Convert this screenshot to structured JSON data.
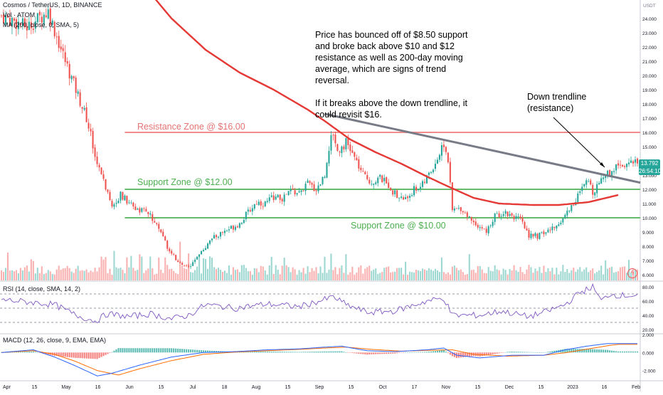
{
  "header": {
    "title": "Cosmos / TetherUS, 1D, BINANCE",
    "vol_legend": "Vol · ATOM",
    "ma_legend": "MA (200, close, 0, SMA, 5)",
    "rsi_legend": "RSI (14, close, SMA, 14, 2)",
    "macd_legend": "MACD (12, 26, close, 9, EMA, EMA)"
  },
  "annotations": {
    "commentary_p1": "Price has bounced off of $8.50 support and broke back above $10 and $12 resistance as well as 200-day moving average, which are signs of trend reversal.",
    "commentary_p2": "If it breaks above the down trendline, it could revisit $16.",
    "trendline_label_1": "Down trendline",
    "trendline_label_2": "(resistance)",
    "resistance_zone": "Resistance Zone @ $16.00",
    "support_zone_12": "Support Zone @ $12.00",
    "support_zone_10": "Support Zone @ $10.00"
  },
  "price_tag": {
    "line1": "13.792",
    "line2": "26:54:10"
  },
  "colors": {
    "up": "#26a69a",
    "down": "#ef5350",
    "ma": "#e53935",
    "trendline": "#787b86",
    "resistance": "#f28b8b",
    "support": "#66bb6a",
    "rsi": "#7e57c2",
    "macd": "#2962ff",
    "signal": "#ff6d00"
  },
  "chart_data": {
    "type": "candlestick",
    "xlabel_ticks": [
      "Apr",
      "15",
      "May",
      "16",
      "Jun",
      "15",
      "Jul",
      "18",
      "Aug",
      "15",
      "Sep",
      "15",
      "Oct",
      "17",
      "Nov",
      "15",
      "Dec",
      "15",
      "2023",
      "16",
      "Feb"
    ],
    "price_axis": {
      "unit": "USDT",
      "ticks": [
        "24.000",
        "23.000",
        "22.000",
        "21.000",
        "20.000",
        "19.000",
        "18.000",
        "17.000",
        "16.000",
        "15.000",
        "14.000",
        "13.000",
        "12.000",
        "11.000",
        "10.000",
        "9.000",
        "8.000",
        "7.000",
        "6.000"
      ],
      "range": [
        5.6,
        25.2
      ]
    },
    "price_path": [
      [
        0,
        24.2
      ],
      [
        12,
        23.4
      ],
      [
        22,
        24.5
      ],
      [
        30,
        21.0
      ],
      [
        40,
        17.0
      ],
      [
        44,
        14.5
      ],
      [
        48,
        12.5
      ],
      [
        52,
        11.0
      ],
      [
        56,
        11.6
      ],
      [
        62,
        10.8
      ],
      [
        68,
        10.4
      ],
      [
        72,
        9.8
      ],
      [
        76,
        8.6
      ],
      [
        80,
        7.4
      ],
      [
        84,
        6.8
      ],
      [
        88,
        6.5
      ],
      [
        92,
        7.4
      ],
      [
        96,
        7.9
      ],
      [
        100,
        8.6
      ],
      [
        104,
        9.0
      ],
      [
        108,
        9.3
      ],
      [
        112,
        9.6
      ],
      [
        116,
        10.4
      ],
      [
        120,
        11.1
      ],
      [
        124,
        11.0
      ],
      [
        128,
        11.5
      ],
      [
        132,
        11.3
      ],
      [
        136,
        11.9
      ],
      [
        140,
        11.7
      ],
      [
        144,
        12.4
      ],
      [
        148,
        12.0
      ],
      [
        152,
        13.0
      ],
      [
        154,
        15.0
      ],
      [
        156,
        16.0
      ],
      [
        158,
        14.7
      ],
      [
        162,
        15.3
      ],
      [
        166,
        14.2
      ],
      [
        170,
        13.0
      ],
      [
        174,
        12.5
      ],
      [
        178,
        12.8
      ],
      [
        182,
        12.3
      ],
      [
        186,
        11.5
      ],
      [
        190,
        11.3
      ],
      [
        194,
        12.0
      ],
      [
        198,
        12.3
      ],
      [
        202,
        13.3
      ],
      [
        206,
        14.5
      ],
      [
        208,
        15.2
      ],
      [
        210,
        14.0
      ],
      [
        212,
        10.5
      ],
      [
        216,
        10.7
      ],
      [
        220,
        10.0
      ],
      [
        224,
        9.5
      ],
      [
        228,
        9.0
      ],
      [
        232,
        10.1
      ],
      [
        236,
        10.4
      ],
      [
        240,
        10.2
      ],
      [
        244,
        9.8
      ],
      [
        248,
        8.8
      ],
      [
        252,
        8.7
      ],
      [
        256,
        9.0
      ],
      [
        260,
        9.3
      ],
      [
        264,
        10.0
      ],
      [
        268,
        10.8
      ],
      [
        272,
        11.8
      ],
      [
        276,
        12.6
      ],
      [
        278,
        11.8
      ],
      [
        282,
        12.8
      ],
      [
        286,
        13.2
      ],
      [
        290,
        13.8
      ]
    ],
    "ma200_path": [
      [
        56,
        28.5
      ],
      [
        66,
        26.5
      ],
      [
        80,
        24.0
      ],
      [
        96,
        21.8
      ],
      [
        112,
        20.2
      ],
      [
        128,
        19.0
      ],
      [
        144,
        17.6
      ],
      [
        152,
        16.8
      ],
      [
        164,
        15.5
      ],
      [
        176,
        14.6
      ],
      [
        188,
        13.8
      ],
      [
        200,
        12.9
      ],
      [
        210,
        12.2
      ],
      [
        222,
        11.4
      ],
      [
        234,
        11.0
      ],
      [
        250,
        10.9
      ],
      [
        262,
        10.9
      ],
      [
        276,
        11.1
      ],
      [
        290,
        11.6
      ]
    ],
    "resistance_level": 16.0,
    "support_levels": [
      12.0,
      10.0
    ],
    "trendline": [
      [
        152,
        17.3
      ],
      [
        295,
        12.6
      ]
    ],
    "bar_count": 300,
    "rsi_axis": {
      "ticks": [
        "80.00",
        "60.00",
        "40.00",
        "20.00"
      ],
      "range": [
        15,
        88
      ],
      "bands": [
        70,
        50,
        30
      ]
    },
    "rsi_path": [
      [
        0,
        62
      ],
      [
        15,
        58
      ],
      [
        25,
        55
      ],
      [
        35,
        40
      ],
      [
        44,
        32
      ],
      [
        50,
        42
      ],
      [
        60,
        38
      ],
      [
        70,
        42
      ],
      [
        80,
        35
      ],
      [
        88,
        40
      ],
      [
        96,
        55
      ],
      [
        110,
        50
      ],
      [
        125,
        56
      ],
      [
        140,
        52
      ],
      [
        152,
        62
      ],
      [
        156,
        66
      ],
      [
        162,
        55
      ],
      [
        172,
        44
      ],
      [
        185,
        46
      ],
      [
        200,
        60
      ],
      [
        208,
        64
      ],
      [
        212,
        40
      ],
      [
        225,
        40
      ],
      [
        235,
        46
      ],
      [
        248,
        38
      ],
      [
        256,
        45
      ],
      [
        265,
        55
      ],
      [
        272,
        72
      ],
      [
        278,
        80
      ],
      [
        282,
        60
      ],
      [
        286,
        70
      ],
      [
        290,
        68
      ]
    ],
    "macd_axis": {
      "ticks": [
        "2.000",
        "0.000",
        "-2.000"
      ],
      "range": [
        -2.9,
        2.0
      ]
    },
    "macd_path": [
      [
        0,
        0.0
      ],
      [
        15,
        0.3
      ],
      [
        25,
        -0.5
      ],
      [
        35,
        -1.5
      ],
      [
        45,
        -2.6
      ],
      [
        52,
        -2.3
      ],
      [
        65,
        -1.4
      ],
      [
        80,
        -0.5
      ],
      [
        95,
        0.0
      ],
      [
        110,
        0.1
      ],
      [
        125,
        0.3
      ],
      [
        140,
        0.4
      ],
      [
        152,
        0.6
      ],
      [
        160,
        0.7
      ],
      [
        172,
        0.2
      ],
      [
        185,
        0.1
      ],
      [
        200,
        0.3
      ],
      [
        208,
        0.5
      ],
      [
        214,
        -0.3
      ],
      [
        225,
        -0.6
      ],
      [
        240,
        -0.3
      ],
      [
        255,
        -0.3
      ],
      [
        265,
        0.3
      ],
      [
        275,
        0.7
      ],
      [
        285,
        1.0
      ],
      [
        290,
        1.0
      ]
    ],
    "signal_path": [
      [
        0,
        0.0
      ],
      [
        15,
        0.2
      ],
      [
        25,
        -0.2
      ],
      [
        35,
        -1.0
      ],
      [
        45,
        -2.0
      ],
      [
        55,
        -2.5
      ],
      [
        65,
        -1.8
      ],
      [
        80,
        -0.9
      ],
      [
        95,
        -0.2
      ],
      [
        110,
        0.05
      ],
      [
        125,
        0.2
      ],
      [
        140,
        0.35
      ],
      [
        152,
        0.5
      ],
      [
        162,
        0.6
      ],
      [
        174,
        0.35
      ],
      [
        188,
        0.15
      ],
      [
        202,
        0.25
      ],
      [
        212,
        0.3
      ],
      [
        222,
        -0.2
      ],
      [
        238,
        -0.4
      ],
      [
        255,
        -0.3
      ],
      [
        266,
        0.0
      ],
      [
        276,
        0.4
      ],
      [
        286,
        0.8
      ],
      [
        290,
        0.9
      ]
    ]
  }
}
